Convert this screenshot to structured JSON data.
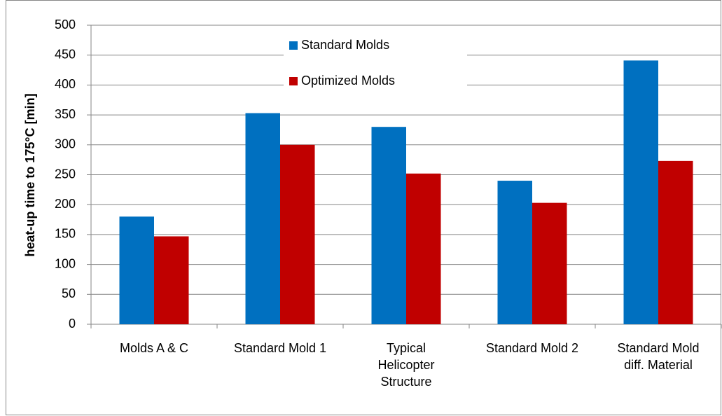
{
  "chart_data": {
    "type": "bar",
    "ylabel": "heat-up time to 175°C [min]",
    "categories": [
      "Molds A & C",
      "Standard Mold 1",
      "Typical Helicopter Structure",
      "Standard Mold 2",
      "Standard Mold diff. Material"
    ],
    "series": [
      {
        "name": "Standard Molds",
        "color": "#0070c0",
        "values": [
          180,
          353,
          330,
          240,
          441
        ]
      },
      {
        "name": "Optimized Molds",
        "color": "#c00000",
        "values": [
          147,
          300,
          252,
          203,
          273
        ]
      }
    ],
    "ylim": [
      0,
      500
    ],
    "yticks": [
      0,
      50,
      100,
      150,
      200,
      250,
      300,
      350,
      400,
      450,
      500
    ],
    "grid": true,
    "legend": "top"
  }
}
